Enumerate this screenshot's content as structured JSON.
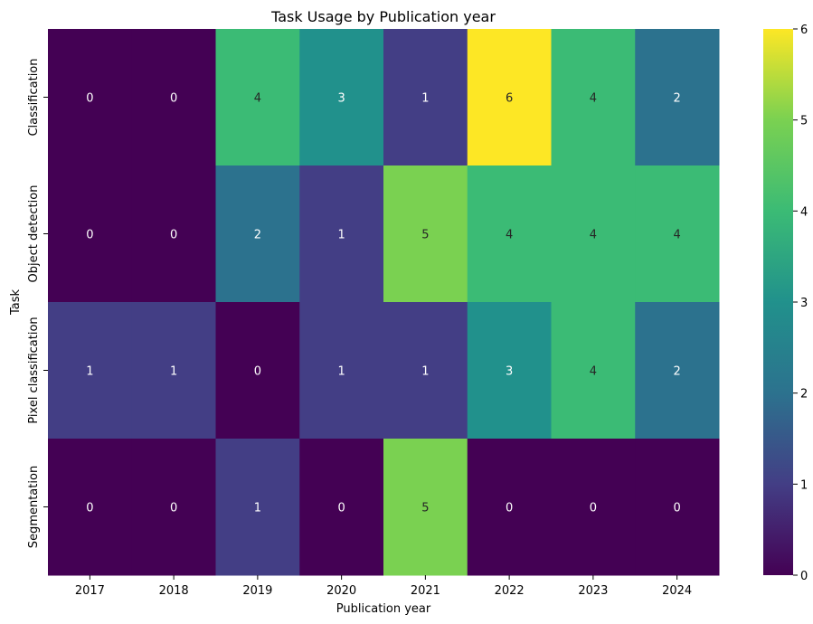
{
  "chart_data": {
    "type": "heatmap",
    "title": "Task Usage by Publication year",
    "xlabel": "Publication year",
    "ylabel": "Task",
    "x": [
      "2017",
      "2018",
      "2019",
      "2020",
      "2021",
      "2022",
      "2023",
      "2024"
    ],
    "y": [
      "Classification",
      "Object detection",
      "Pixel classification",
      "Segmentation"
    ],
    "values": [
      [
        0,
        0,
        4,
        3,
        1,
        6,
        4,
        2
      ],
      [
        0,
        0,
        2,
        1,
        5,
        4,
        4,
        4
      ],
      [
        1,
        1,
        0,
        1,
        1,
        3,
        4,
        2
      ],
      [
        0,
        0,
        1,
        0,
        5,
        0,
        0,
        0
      ]
    ],
    "colorbar": {
      "min": 0,
      "max": 6,
      "ticks": [
        "0",
        "1",
        "2",
        "3",
        "4",
        "5",
        "6"
      ]
    },
    "colormap": "viridis",
    "legend": "colorbar-right"
  }
}
